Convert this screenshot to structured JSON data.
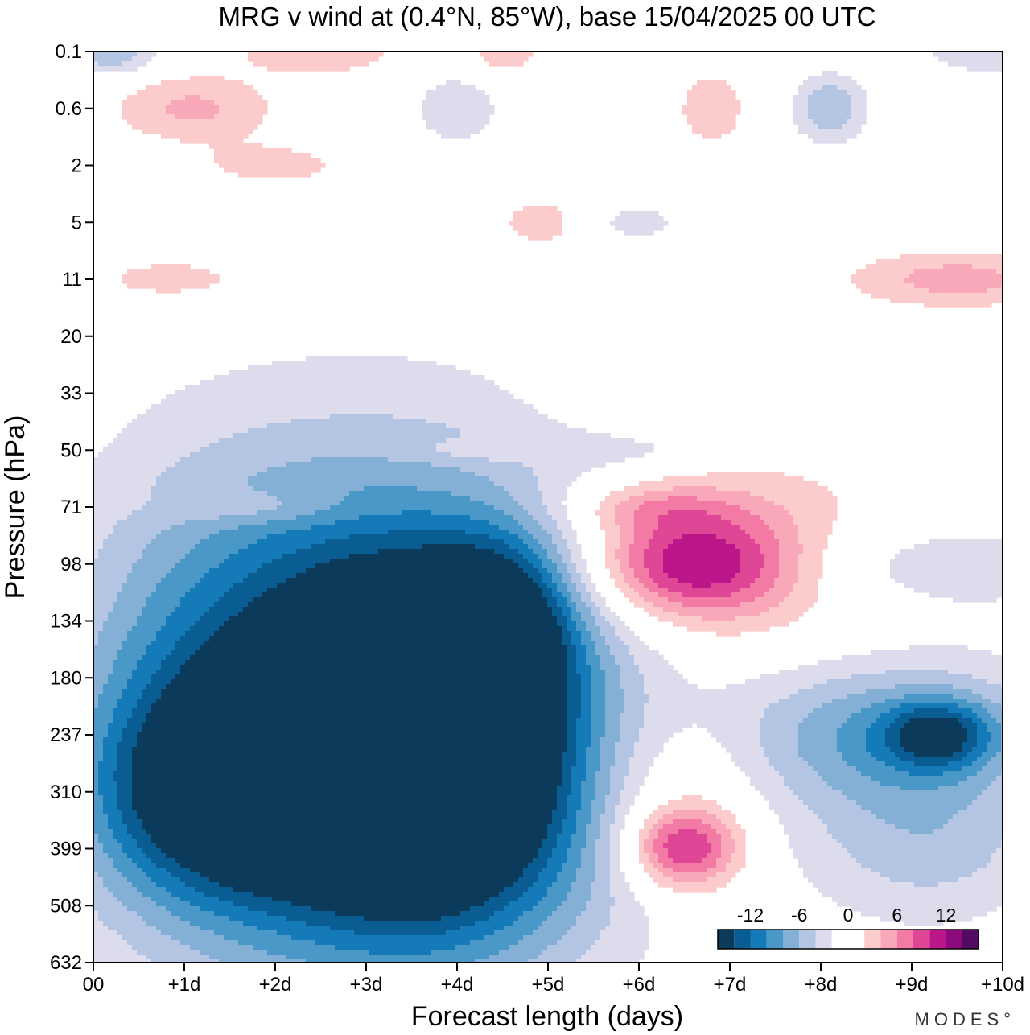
{
  "chart_data": {
    "type": "heatmap",
    "title": "MRG v wind at (0.4°N, 85°W),  base 15/04/2025  00 UTC",
    "xlabel": "Forecast length (days)",
    "ylabel": "Pressure (hPa)",
    "xlim": [
      0,
      10
    ],
    "x_ticks": [
      {
        "value": 0,
        "label": "00"
      },
      {
        "value": 1,
        "label": "+1d"
      },
      {
        "value": 2,
        "label": "+2d"
      },
      {
        "value": 3,
        "label": "+3d"
      },
      {
        "value": 4,
        "label": "+4d"
      },
      {
        "value": 5,
        "label": "+5d"
      },
      {
        "value": 6,
        "label": "+6d"
      },
      {
        "value": 7,
        "label": "+7d"
      },
      {
        "value": 8,
        "label": "+8d"
      },
      {
        "value": 9,
        "label": "+9d"
      },
      {
        "value": 10,
        "label": "+10d"
      }
    ],
    "y_ticks": [
      "0.1",
      "0.6",
      "2",
      "5",
      "11",
      "20",
      "33",
      "50",
      "71",
      "98",
      "134",
      "180",
      "237",
      "310",
      "399",
      "508",
      "632"
    ],
    "y_scale": "categorical pressure levels, top to bottom",
    "colorbar": {
      "labels": [
        {
          "value": -12,
          "label": "-12"
        },
        {
          "value": -6,
          "label": "-6"
        },
        {
          "value": 0,
          "label": "0"
        },
        {
          "value": 6,
          "label": "6"
        },
        {
          "value": 12,
          "label": "12"
        }
      ],
      "bins": [
        {
          "range": [
            -16,
            -14
          ],
          "color": "#0b3a5a"
        },
        {
          "range": [
            -14,
            -12
          ],
          "color": "#0a5d92"
        },
        {
          "range": [
            -12,
            -10
          ],
          "color": "#157ab8"
        },
        {
          "range": [
            -10,
            -8
          ],
          "color": "#4a98c8"
        },
        {
          "range": [
            -8,
            -6
          ],
          "color": "#84b0d6"
        },
        {
          "range": [
            -6,
            -4
          ],
          "color": "#b3c5e2"
        },
        {
          "range": [
            -4,
            -2
          ],
          "color": "#dcdcec"
        },
        {
          "range": [
            -2,
            2
          ],
          "color": "#ffffff"
        },
        {
          "range": [
            2,
            4
          ],
          "color": "#fccbcc"
        },
        {
          "range": [
            4,
            6
          ],
          "color": "#f8a8b8"
        },
        {
          "range": [
            6,
            8
          ],
          "color": "#f47aa6"
        },
        {
          "range": [
            8,
            10
          ],
          "color": "#e04696"
        },
        {
          "range": [
            10,
            12
          ],
          "color": "#bd168a"
        },
        {
          "range": [
            12,
            14
          ],
          "color": "#8c0a7e"
        },
        {
          "range": [
            14,
            16
          ],
          "color": "#520a63"
        }
      ]
    },
    "features": [
      {
        "day": 3.6,
        "level": "237",
        "value": -15,
        "spread_days": 1.3,
        "spread_levels": 2.2
      },
      {
        "day": 3.2,
        "level": "237",
        "value": -9,
        "spread_days": 2.4,
        "spread_levels": 4.5
      },
      {
        "day": 1.4,
        "level": "310",
        "value": -11,
        "spread_days": 1.4,
        "spread_levels": 1.8
      },
      {
        "day": 4.5,
        "level": "134",
        "value": -9,
        "spread_days": 0.8,
        "spread_levels": 1.5
      },
      {
        "day": 3.5,
        "level": "180",
        "value": -6,
        "spread_days": 2.2,
        "spread_levels": 3.5
      },
      {
        "day": 2.5,
        "level": "237",
        "value": -5,
        "spread_days": 2.6,
        "spread_levels": 4.5
      },
      {
        "day": 4.0,
        "level": "399",
        "value": -5,
        "spread_days": 1.6,
        "spread_levels": 2.0
      },
      {
        "day": 1.0,
        "level": "180",
        "value": -3,
        "spread_days": 1.4,
        "spread_levels": 4.0
      },
      {
        "day": 9.3,
        "level": "237",
        "value": -9,
        "spread_days": 0.6,
        "spread_levels": 0.6
      },
      {
        "day": 8.8,
        "level": "237",
        "value": -6,
        "spread_days": 1.6,
        "spread_levels": 1.2
      },
      {
        "day": 9.2,
        "level": "399",
        "value": -4,
        "spread_days": 1.3,
        "spread_levels": 1.4
      },
      {
        "day": 9.0,
        "level": "98",
        "value": -4,
        "spread_days": 2.0,
        "spread_levels": 0.8
      },
      {
        "day": 8.5,
        "level": "237",
        "value": -2.5,
        "spread_days": 2.6,
        "spread_levels": 2.4
      },
      {
        "day": 6.6,
        "level": "98",
        "value": 10,
        "spread_days": 1.1,
        "spread_levels": 0.9
      },
      {
        "day": 7.0,
        "level": "98",
        "value": 5,
        "spread_days": 2.0,
        "spread_levels": 1.8
      },
      {
        "day": 6.5,
        "level": "399",
        "value": 10,
        "spread_days": 0.6,
        "spread_levels": 0.7
      },
      {
        "day": 6.4,
        "level": "310",
        "value": 4.5,
        "spread_days": 1.0,
        "spread_levels": 1.6
      },
      {
        "day": 6.1,
        "level": "71",
        "value": 3.5,
        "spread_days": 0.9,
        "spread_levels": 0.4
      },
      {
        "day": 1.1,
        "level": "0.6",
        "value": 4.5,
        "spread_days": 0.9,
        "spread_levels": 0.6
      },
      {
        "day": 2.5,
        "level": "0.1",
        "value": 4,
        "spread_days": 0.9,
        "spread_levels": 0.4
      },
      {
        "day": 4.5,
        "level": "0.1",
        "value": 4,
        "spread_days": 0.4,
        "spread_levels": 0.4
      },
      {
        "day": 6.8,
        "level": "0.6",
        "value": 3.5,
        "spread_days": 0.4,
        "spread_levels": 0.7
      },
      {
        "day": 5.0,
        "level": "5",
        "value": 4,
        "spread_days": 0.6,
        "spread_levels": 0.5
      },
      {
        "day": 9.5,
        "level": "11",
        "value": 5,
        "spread_days": 1.2,
        "spread_levels": 0.5
      },
      {
        "day": 0.9,
        "level": "11",
        "value": 3,
        "spread_days": 1.2,
        "spread_levels": 0.5
      },
      {
        "day": 2.0,
        "level": "2",
        "value": 3,
        "spread_days": 0.9,
        "spread_levels": 0.4
      },
      {
        "day": 8.1,
        "level": "0.6",
        "value": -6,
        "spread_days": 0.4,
        "spread_levels": 0.6
      },
      {
        "day": 0.2,
        "level": "0.1",
        "value": -6,
        "spread_days": 0.5,
        "spread_levels": 0.4
      },
      {
        "day": 9.9,
        "level": "0.1",
        "value": -4,
        "spread_days": 0.8,
        "spread_levels": 0.4
      },
      {
        "day": 4.0,
        "level": "0.6",
        "value": -3,
        "spread_days": 0.6,
        "spread_levels": 0.8
      },
      {
        "day": 5.8,
        "level": "5",
        "value": -3,
        "spread_days": 0.8,
        "spread_levels": 0.4
      },
      {
        "day": 8.0,
        "level": "33",
        "value": -2.5,
        "spread_days": 1.0,
        "spread_levels": 0.2
      },
      {
        "day": 7.4,
        "level": "33",
        "value": 3,
        "spread_days": 1.5,
        "spread_levels": 0.3
      },
      {
        "day": 5.8,
        "level": "50",
        "value": -2.5,
        "spread_days": 1.2,
        "spread_levels": 0.3
      },
      {
        "day": 4.5,
        "level": "50",
        "value": 2.5,
        "spread_days": 1.0,
        "spread_levels": 0.2
      },
      {
        "day": 1.8,
        "level": "71",
        "value": 2.5,
        "spread_days": 1.0,
        "spread_levels": 0.3
      }
    ],
    "branding": "MODES°"
  }
}
